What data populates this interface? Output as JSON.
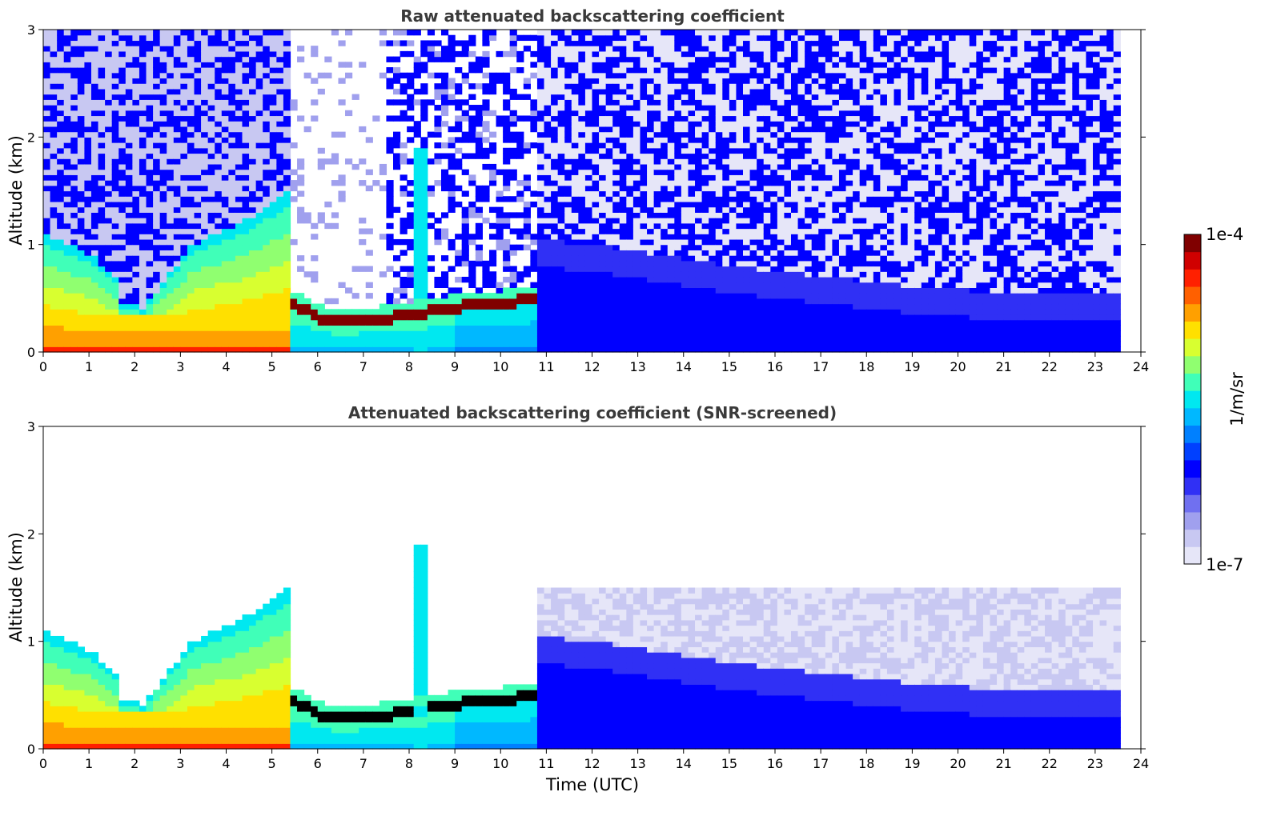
{
  "chart_data": [
    {
      "type": "heatmap",
      "title": "Raw attenuated backscattering coefficient",
      "xlabel": "",
      "ylabel": "Altitude (km)",
      "xlim": [
        0,
        24
      ],
      "ylim": [
        0,
        3
      ],
      "x_ticks": [
        "0",
        "1",
        "2",
        "3",
        "4",
        "5",
        "6",
        "7",
        "8",
        "9",
        "10",
        "11",
        "12",
        "13",
        "14",
        "15",
        "16",
        "17",
        "18",
        "19",
        "20",
        "21",
        "22",
        "23",
        "24"
      ],
      "y_ticks": [
        "0",
        "1",
        "2",
        "3"
      ],
      "grid": false,
      "data_end_time": 23.5,
      "features": [
        {
          "name": "aerosol-layer-0-5h",
          "t_start": 0,
          "t_end": 5.4,
          "top_km": [
            0.35,
            0.3,
            0.25,
            0.3,
            0.35,
            0.4
          ],
          "intensity": "high"
        },
        {
          "name": "cloud-layer-5-11h",
          "t_start": 5.4,
          "t_end": 10.8,
          "base_km": [
            0.45,
            0.3,
            0.3,
            0.35,
            0.4,
            0.45,
            0.5
          ],
          "intensity": "very-high"
        },
        {
          "name": "clear-boundary-layer-11-23.5h",
          "t_start": 10.8,
          "t_end": 23.5,
          "top_km": [
            0.8,
            0.7,
            0.55,
            0.45,
            0.35,
            0.3,
            0.3
          ],
          "intensity": "low"
        },
        {
          "name": "plume-8h",
          "t_start": 8.1,
          "t_end": 8.35,
          "top_km": 1.9,
          "intensity": "medium"
        }
      ]
    },
    {
      "type": "heatmap",
      "title": "Attenuated backscattering coefficient (SNR-screened)",
      "xlabel": "Time (UTC)",
      "ylabel": "Altitude (km)",
      "xlim": [
        0,
        24
      ],
      "ylim": [
        0,
        3
      ],
      "x_ticks": [
        "0",
        "1",
        "2",
        "3",
        "4",
        "5",
        "6",
        "7",
        "8",
        "9",
        "10",
        "11",
        "12",
        "13",
        "14",
        "15",
        "16",
        "17",
        "18",
        "19",
        "20",
        "21",
        "22",
        "23",
        "24"
      ],
      "y_ticks": [
        "0",
        "1",
        "2",
        "3"
      ],
      "grid": false,
      "data_end_time": 23.5
    }
  ],
  "colorbar": {
    "label": "1/m/sr",
    "max_label": "1e-4",
    "min_label": "1e-7",
    "scale": "log",
    "colors": [
      "#e6e6f8",
      "#c8c8f2",
      "#a0a0ee",
      "#7070f0",
      "#3030f5",
      "#0000ff",
      "#0040ff",
      "#0080ff",
      "#00b8ff",
      "#00e8f0",
      "#40ffb8",
      "#90ff70",
      "#d8ff30",
      "#ffe000",
      "#ffa000",
      "#ff6000",
      "#ff2000",
      "#d00000",
      "#800000"
    ]
  }
}
